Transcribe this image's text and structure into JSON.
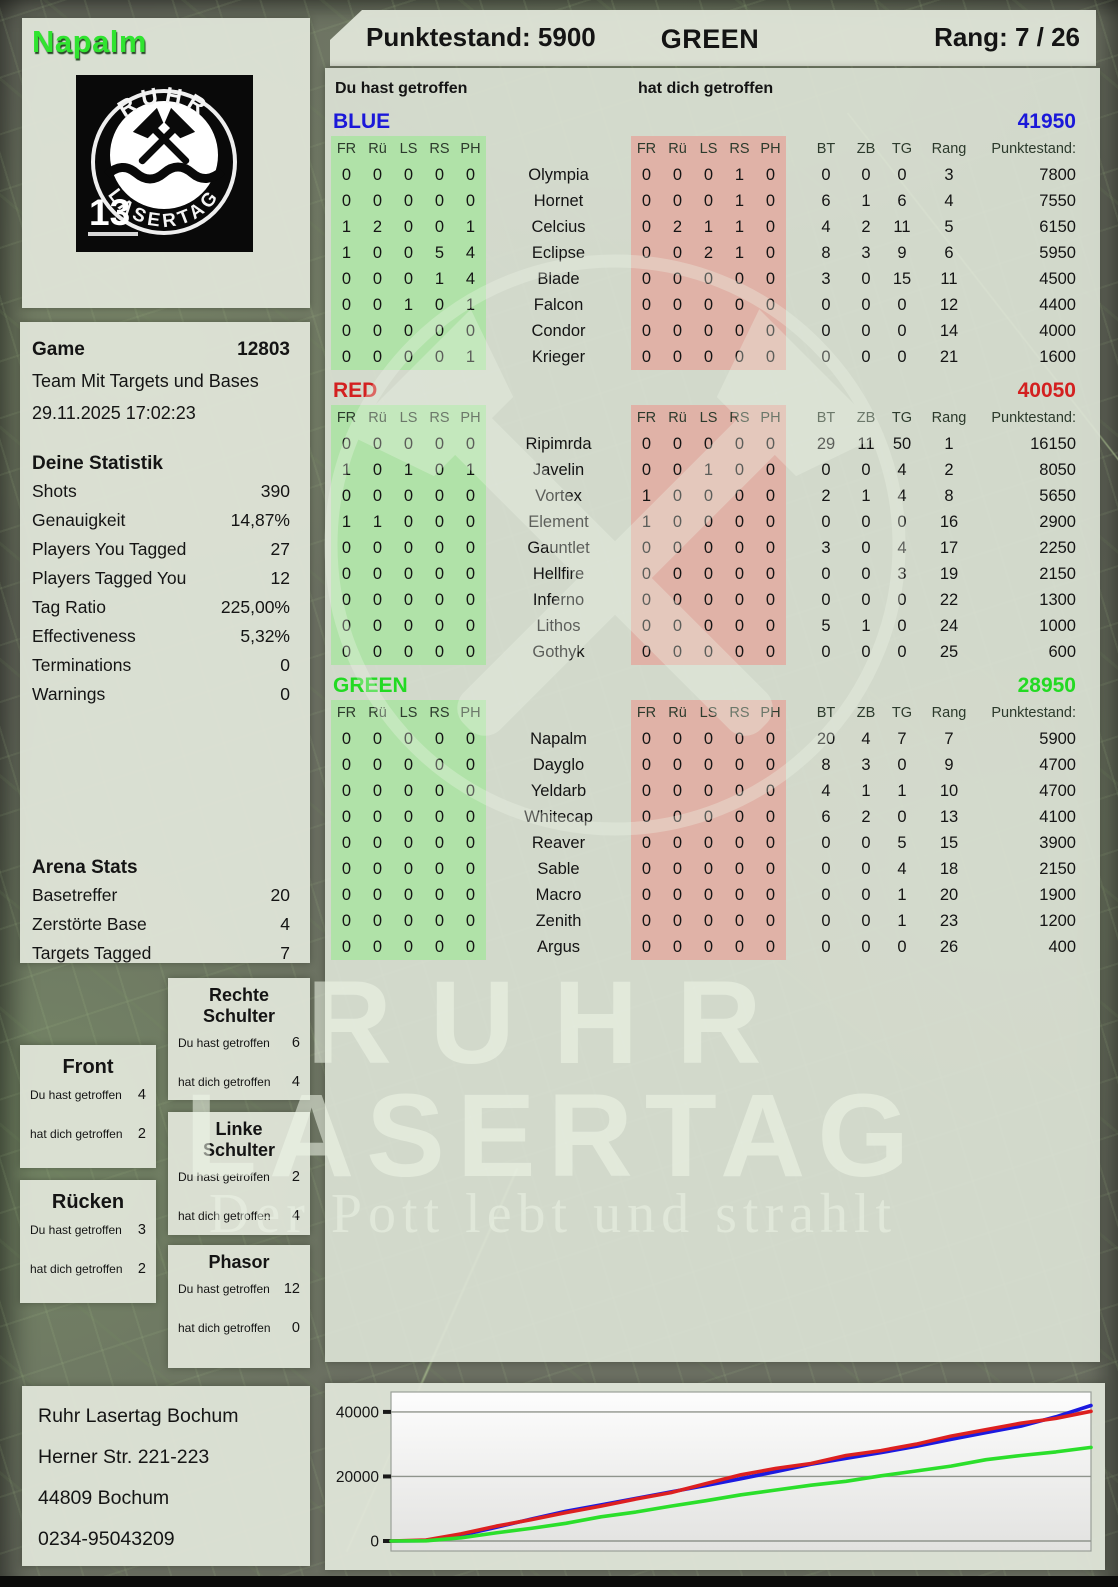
{
  "header": {
    "player": "Napalm",
    "score_label": "Punktestand: 5900",
    "team": "GREEN",
    "rank_label": "Rang: 7 / 26"
  },
  "logo": {
    "arc_top": "RUHR",
    "arc_bottom": "LASERTAG",
    "badge": "13"
  },
  "labels": {
    "you": "Du hast getroffen",
    "them": "hat dich getroffen"
  },
  "game": {
    "label": "Game",
    "number": "12803",
    "mode": "Team Mit Targets und Bases",
    "datetime": "29.11.2025 17:02:23"
  },
  "stats": {
    "title": "Deine Statistik",
    "rows": [
      {
        "label": "Shots",
        "value": "390"
      },
      {
        "label": "Genauigkeit",
        "value": "14,87%"
      },
      {
        "label": "Players You Tagged",
        "value": "27"
      },
      {
        "label": "Players Tagged You",
        "value": "12"
      },
      {
        "label": "Tag Ratio",
        "value": "225,00%"
      },
      {
        "label": "Effectiveness",
        "value": "5,32%"
      },
      {
        "label": "Terminations",
        "value": "0"
      },
      {
        "label": "Warnings",
        "value": "0"
      }
    ]
  },
  "arena": {
    "title": "Arena Stats",
    "rows": [
      {
        "label": "Basetreffer",
        "value": "20"
      },
      {
        "label": "Zerstörte Base",
        "value": "4"
      },
      {
        "label": "Targets Tagged",
        "value": "7"
      }
    ]
  },
  "hit_panels": [
    {
      "title": "Rechte Schulter",
      "you": "6",
      "them": "4"
    },
    {
      "title": "Front",
      "you": "4",
      "them": "2"
    },
    {
      "title": "Linke Schulter",
      "you": "2",
      "them": "4"
    },
    {
      "title": "Rücken",
      "you": "3",
      "them": "2"
    },
    {
      "title": "Phasor",
      "you": "12",
      "them": "0"
    }
  ],
  "main": {
    "hit_columns": [
      "FR",
      "Rü",
      "LS",
      "RS",
      "PH"
    ],
    "stat_columns": [
      "BT",
      "ZB",
      "TG",
      "Rang",
      "Punktestand:"
    ],
    "teams": [
      {
        "name": "BLUE",
        "color": "#1b18d9",
        "total": "41950",
        "rows": [
          {
            "you": [
              "0",
              "0",
              "0",
              "0",
              "0"
            ],
            "name": "Olympia",
            "them": [
              "0",
              "0",
              "0",
              "1",
              "0"
            ],
            "bt": "0",
            "zb": "0",
            "tg": "0",
            "rang": "3",
            "punkte": "7800"
          },
          {
            "you": [
              "0",
              "0",
              "0",
              "0",
              "0"
            ],
            "name": "Hornet",
            "them": [
              "0",
              "0",
              "0",
              "1",
              "0"
            ],
            "bt": "6",
            "zb": "1",
            "tg": "6",
            "rang": "4",
            "punkte": "7550"
          },
          {
            "you": [
              "1",
              "2",
              "0",
              "0",
              "1"
            ],
            "name": "Celcius",
            "them": [
              "0",
              "2",
              "1",
              "1",
              "0"
            ],
            "bt": "4",
            "zb": "2",
            "tg": "11",
            "rang": "5",
            "punkte": "6150"
          },
          {
            "you": [
              "1",
              "0",
              "0",
              "5",
              "4"
            ],
            "name": "Eclipse",
            "them": [
              "0",
              "0",
              "2",
              "1",
              "0"
            ],
            "bt": "8",
            "zb": "3",
            "tg": "9",
            "rang": "6",
            "punkte": "5950"
          },
          {
            "you": [
              "0",
              "0",
              "0",
              "1",
              "4"
            ],
            "name": "Blade",
            "them": [
              "0",
              "0",
              "0",
              "0",
              "0"
            ],
            "bt": "3",
            "zb": "0",
            "tg": "15",
            "rang": "11",
            "punkte": "4500"
          },
          {
            "you": [
              "0",
              "0",
              "1",
              "0",
              "1"
            ],
            "name": "Falcon",
            "them": [
              "0",
              "0",
              "0",
              "0",
              "0"
            ],
            "bt": "0",
            "zb": "0",
            "tg": "0",
            "rang": "12",
            "punkte": "4400"
          },
          {
            "you": [
              "0",
              "0",
              "0",
              "0",
              "0"
            ],
            "name": "Condor",
            "them": [
              "0",
              "0",
              "0",
              "0",
              "0"
            ],
            "bt": "0",
            "zb": "0",
            "tg": "0",
            "rang": "14",
            "punkte": "4000"
          },
          {
            "you": [
              "0",
              "0",
              "0",
              "0",
              "1"
            ],
            "name": "Krieger",
            "them": [
              "0",
              "0",
              "0",
              "0",
              "0"
            ],
            "bt": "0",
            "zb": "0",
            "tg": "0",
            "rang": "21",
            "punkte": "1600"
          }
        ]
      },
      {
        "name": "RED",
        "color": "#d32020",
        "total": "40050",
        "rows": [
          {
            "you": [
              "0",
              "0",
              "0",
              "0",
              "0"
            ],
            "name": "Ripimrda",
            "them": [
              "0",
              "0",
              "0",
              "0",
              "0"
            ],
            "bt": "29",
            "zb": "11",
            "tg": "50",
            "rang": "1",
            "punkte": "16150"
          },
          {
            "you": [
              "1",
              "0",
              "1",
              "0",
              "1"
            ],
            "name": "Javelin",
            "them": [
              "0",
              "0",
              "1",
              "0",
              "0"
            ],
            "bt": "0",
            "zb": "0",
            "tg": "4",
            "rang": "2",
            "punkte": "8050"
          },
          {
            "you": [
              "0",
              "0",
              "0",
              "0",
              "0"
            ],
            "name": "Vortex",
            "them": [
              "1",
              "0",
              "0",
              "0",
              "0"
            ],
            "bt": "2",
            "zb": "1",
            "tg": "4",
            "rang": "8",
            "punkte": "5650"
          },
          {
            "you": [
              "1",
              "1",
              "0",
              "0",
              "0"
            ],
            "name": "Element",
            "them": [
              "1",
              "0",
              "0",
              "0",
              "0"
            ],
            "bt": "0",
            "zb": "0",
            "tg": "0",
            "rang": "16",
            "punkte": "2900"
          },
          {
            "you": [
              "0",
              "0",
              "0",
              "0",
              "0"
            ],
            "name": "Gauntlet",
            "them": [
              "0",
              "0",
              "0",
              "0",
              "0"
            ],
            "bt": "3",
            "zb": "0",
            "tg": "4",
            "rang": "17",
            "punkte": "2250"
          },
          {
            "you": [
              "0",
              "0",
              "0",
              "0",
              "0"
            ],
            "name": "Hellfire",
            "them": [
              "0",
              "0",
              "0",
              "0",
              "0"
            ],
            "bt": "0",
            "zb": "0",
            "tg": "3",
            "rang": "19",
            "punkte": "2150"
          },
          {
            "you": [
              "0",
              "0",
              "0",
              "0",
              "0"
            ],
            "name": "Inferno",
            "them": [
              "0",
              "0",
              "0",
              "0",
              "0"
            ],
            "bt": "0",
            "zb": "0",
            "tg": "0",
            "rang": "22",
            "punkte": "1300"
          },
          {
            "you": [
              "0",
              "0",
              "0",
              "0",
              "0"
            ],
            "name": "Lithos",
            "them": [
              "0",
              "0",
              "0",
              "0",
              "0"
            ],
            "bt": "5",
            "zb": "1",
            "tg": "0",
            "rang": "24",
            "punkte": "1000"
          },
          {
            "you": [
              "0",
              "0",
              "0",
              "0",
              "0"
            ],
            "name": "Gothyk",
            "them": [
              "0",
              "0",
              "0",
              "0",
              "0"
            ],
            "bt": "0",
            "zb": "0",
            "tg": "0",
            "rang": "25",
            "punkte": "600"
          }
        ]
      },
      {
        "name": "GREEN",
        "color": "#23da23",
        "total": "28950",
        "rows": [
          {
            "you": [
              "0",
              "0",
              "0",
              "0",
              "0"
            ],
            "name": "Napalm",
            "them": [
              "0",
              "0",
              "0",
              "0",
              "0"
            ],
            "bt": "20",
            "zb": "4",
            "tg": "7",
            "rang": "7",
            "punkte": "5900"
          },
          {
            "you": [
              "0",
              "0",
              "0",
              "0",
              "0"
            ],
            "name": "Dayglo",
            "them": [
              "0",
              "0",
              "0",
              "0",
              "0"
            ],
            "bt": "8",
            "zb": "3",
            "tg": "0",
            "rang": "9",
            "punkte": "4700"
          },
          {
            "you": [
              "0",
              "0",
              "0",
              "0",
              "0"
            ],
            "name": "Yeldarb",
            "them": [
              "0",
              "0",
              "0",
              "0",
              "0"
            ],
            "bt": "4",
            "zb": "1",
            "tg": "1",
            "rang": "10",
            "punkte": "4700"
          },
          {
            "you": [
              "0",
              "0",
              "0",
              "0",
              "0"
            ],
            "name": "Whitecap",
            "them": [
              "0",
              "0",
              "0",
              "0",
              "0"
            ],
            "bt": "6",
            "zb": "2",
            "tg": "0",
            "rang": "13",
            "punkte": "4100"
          },
          {
            "you": [
              "0",
              "0",
              "0",
              "0",
              "0"
            ],
            "name": "Reaver",
            "them": [
              "0",
              "0",
              "0",
              "0",
              "0"
            ],
            "bt": "0",
            "zb": "0",
            "tg": "5",
            "rang": "15",
            "punkte": "3900"
          },
          {
            "you": [
              "0",
              "0",
              "0",
              "0",
              "0"
            ],
            "name": "Sable",
            "them": [
              "0",
              "0",
              "0",
              "0",
              "0"
            ],
            "bt": "0",
            "zb": "0",
            "tg": "4",
            "rang": "18",
            "punkte": "2150"
          },
          {
            "you": [
              "0",
              "0",
              "0",
              "0",
              "0"
            ],
            "name": "Macro",
            "them": [
              "0",
              "0",
              "0",
              "0",
              "0"
            ],
            "bt": "0",
            "zb": "0",
            "tg": "1",
            "rang": "20",
            "punkte": "1900"
          },
          {
            "you": [
              "0",
              "0",
              "0",
              "0",
              "0"
            ],
            "name": "Zenith",
            "them": [
              "0",
              "0",
              "0",
              "0",
              "0"
            ],
            "bt": "0",
            "zb": "0",
            "tg": "1",
            "rang": "23",
            "punkte": "1200"
          },
          {
            "you": [
              "0",
              "0",
              "0",
              "0",
              "0"
            ],
            "name": "Argus",
            "them": [
              "0",
              "0",
              "0",
              "0",
              "0"
            ],
            "bt": "0",
            "zb": "0",
            "tg": "0",
            "rang": "26",
            "punkte": "400"
          }
        ]
      }
    ]
  },
  "footer": {
    "lines": [
      "Ruhr Lasertag Bochum",
      "Herner Str. 221-223",
      "44809 Bochum",
      "0234-95043209"
    ]
  },
  "watermark": {
    "line1": "RUHR",
    "line2": "LASERTAG",
    "line3": "Der Pott lebt und strahlt"
  },
  "chart_data": {
    "type": "line",
    "title": "",
    "xlabel": "",
    "ylabel": "",
    "yticks": [
      0,
      20000,
      40000
    ],
    "ylim": [
      0,
      44000
    ],
    "grid": true,
    "legend_position": "none",
    "x_percent": [
      0,
      5,
      10,
      15,
      20,
      25,
      30,
      35,
      40,
      45,
      50,
      55,
      60,
      65,
      70,
      75,
      80,
      85,
      90,
      95,
      100
    ],
    "series": [
      {
        "name": "BLUE",
        "color": "#1c1ae0",
        "values": [
          0,
          100,
          1800,
          4200,
          6800,
          9200,
          11200,
          13200,
          15200,
          17200,
          19300,
          21500,
          23800,
          25600,
          27400,
          29300,
          31500,
          33600,
          35600,
          38500,
          42000
        ]
      },
      {
        "name": "RED",
        "color": "#dd2020",
        "values": [
          0,
          300,
          2200,
          4600,
          6600,
          8800,
          10800,
          13000,
          15000,
          17800,
          20500,
          22500,
          24000,
          26500,
          28000,
          30000,
          32500,
          34500,
          36500,
          38000,
          40200
        ]
      },
      {
        "name": "GREEN",
        "color": "#2bdf2b",
        "values": [
          0,
          50,
          1000,
          2500,
          3900,
          5500,
          7500,
          9000,
          10800,
          12500,
          14300,
          15800,
          17300,
          18500,
          20200,
          21700,
          23200,
          25200,
          26500,
          27600,
          29000
        ]
      }
    ]
  }
}
